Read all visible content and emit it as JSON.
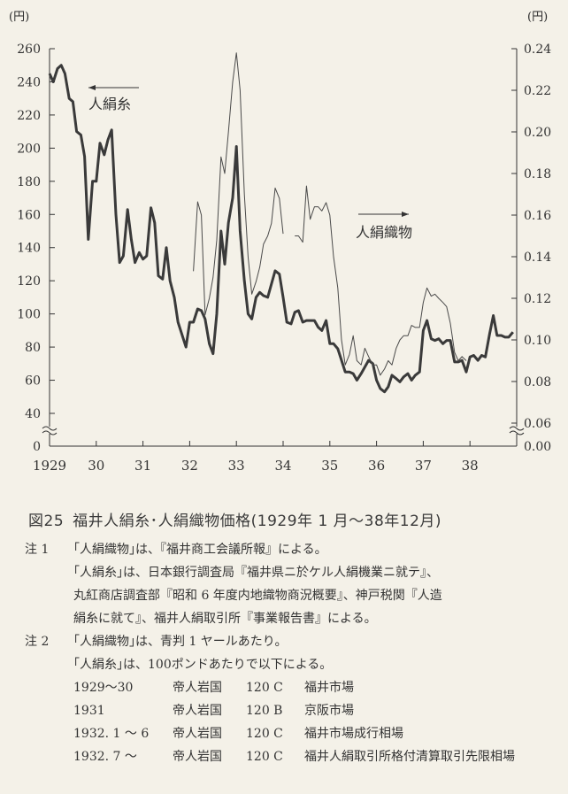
{
  "left_unit": "(円)",
  "right_unit": "(円)",
  "chart_data": {
    "type": "line",
    "x_ticks": [
      "1929",
      "30",
      "31",
      "32",
      "33",
      "34",
      "35",
      "36",
      "37",
      "38"
    ],
    "y_left_ticks": [
      "0",
      "40",
      "60",
      "80",
      "100",
      "120",
      "140",
      "160",
      "180",
      "200",
      "220",
      "240",
      "260"
    ],
    "y_right_ticks": [
      "0.00",
      "0.06",
      "0.08",
      "0.10",
      "0.12",
      "0.14",
      "0.16",
      "0.18",
      "0.20",
      "0.22",
      "0.24"
    ],
    "y_left_range": [
      40,
      260
    ],
    "y_right_range": [
      0.06,
      0.24
    ],
    "axis_break": true,
    "series": [
      {
        "name": "人絹糸",
        "axis": "left",
        "color": "#3a3a3a",
        "points": [
          [
            1929.0,
            245
          ],
          [
            1929.08,
            240
          ],
          [
            1929.17,
            248
          ],
          [
            1929.25,
            250
          ],
          [
            1929.33,
            245
          ],
          [
            1929.42,
            230
          ],
          [
            1929.5,
            228
          ],
          [
            1929.58,
            210
          ],
          [
            1929.67,
            208
          ],
          [
            1929.75,
            195
          ],
          [
            1929.83,
            145
          ],
          [
            1929.92,
            180
          ],
          [
            1930.0,
            180
          ],
          [
            1930.08,
            203
          ],
          [
            1930.17,
            196
          ],
          [
            1930.25,
            205
          ],
          [
            1930.33,
            211
          ],
          [
            1930.42,
            160
          ],
          [
            1930.5,
            131
          ],
          [
            1930.58,
            135
          ],
          [
            1930.67,
            163
          ],
          [
            1930.75,
            145
          ],
          [
            1930.83,
            131
          ],
          [
            1930.92,
            137
          ],
          [
            1931.0,
            133
          ],
          [
            1931.08,
            135
          ],
          [
            1931.17,
            164
          ],
          [
            1931.25,
            155
          ],
          [
            1931.33,
            123
          ],
          [
            1931.42,
            121
          ],
          [
            1931.5,
            140
          ],
          [
            1931.58,
            120
          ],
          [
            1931.67,
            110
          ],
          [
            1931.75,
            95
          ],
          [
            1931.83,
            88
          ],
          [
            1931.92,
            80
          ],
          [
            1932.0,
            95
          ],
          [
            1932.08,
            95
          ],
          [
            1932.17,
            103
          ],
          [
            1932.25,
            102
          ],
          [
            1932.33,
            97
          ],
          [
            1932.42,
            82
          ],
          [
            1932.5,
            76
          ],
          [
            1932.58,
            100
          ],
          [
            1932.67,
            150
          ],
          [
            1932.75,
            130
          ],
          [
            1932.83,
            155
          ],
          [
            1932.92,
            170
          ],
          [
            1933.0,
            201
          ],
          [
            1933.08,
            150
          ],
          [
            1933.17,
            120
          ],
          [
            1933.25,
            100
          ],
          [
            1933.33,
            97
          ],
          [
            1933.42,
            110
          ],
          [
            1933.5,
            113
          ],
          [
            1933.58,
            111
          ],
          [
            1933.67,
            110
          ],
          [
            1933.75,
            118
          ],
          [
            1933.83,
            126
          ],
          [
            1933.92,
            124
          ],
          [
            1934.0,
            110
          ],
          [
            1934.08,
            95
          ],
          [
            1934.17,
            94
          ],
          [
            1934.25,
            101
          ],
          [
            1934.33,
            102
          ],
          [
            1934.42,
            95
          ],
          [
            1934.5,
            96
          ],
          [
            1934.58,
            96
          ],
          [
            1934.67,
            96
          ],
          [
            1934.75,
            92
          ],
          [
            1934.83,
            90
          ],
          [
            1934.92,
            96
          ],
          [
            1935.0,
            82
          ],
          [
            1935.08,
            82
          ],
          [
            1935.17,
            79
          ],
          [
            1935.25,
            72
          ],
          [
            1935.33,
            65
          ],
          [
            1935.42,
            65
          ],
          [
            1935.5,
            64
          ],
          [
            1935.58,
            60
          ],
          [
            1935.67,
            64
          ],
          [
            1935.75,
            68
          ],
          [
            1935.83,
            72
          ],
          [
            1935.92,
            70
          ],
          [
            1936.0,
            60
          ],
          [
            1936.08,
            55
          ],
          [
            1936.17,
            53
          ],
          [
            1936.25,
            56
          ],
          [
            1936.33,
            63
          ],
          [
            1936.42,
            61
          ],
          [
            1936.5,
            59
          ],
          [
            1936.58,
            62
          ],
          [
            1936.67,
            64
          ],
          [
            1936.75,
            60
          ],
          [
            1936.83,
            63
          ],
          [
            1936.92,
            65
          ],
          [
            1937.0,
            90
          ],
          [
            1937.08,
            96
          ],
          [
            1937.17,
            85
          ],
          [
            1937.25,
            84
          ],
          [
            1937.33,
            85
          ],
          [
            1937.42,
            82
          ],
          [
            1937.5,
            84
          ],
          [
            1937.58,
            84
          ],
          [
            1937.67,
            71
          ],
          [
            1937.75,
            71
          ],
          [
            1937.83,
            72
          ],
          [
            1937.92,
            65
          ],
          [
            1938.0,
            74
          ],
          [
            1938.08,
            75
          ],
          [
            1938.17,
            72
          ],
          [
            1938.25,
            75
          ],
          [
            1938.33,
            74
          ],
          [
            1938.42,
            88
          ],
          [
            1938.5,
            99
          ],
          [
            1938.58,
            87
          ],
          [
            1938.67,
            87
          ],
          [
            1938.75,
            86
          ],
          [
            1938.83,
            86
          ],
          [
            1938.92,
            89
          ]
        ]
      },
      {
        "name": "人絹織物",
        "axis": "right",
        "color": "#4a4a4a",
        "segments": [
          [
            [
              1932.08,
              0.133
            ],
            [
              1932.17,
              0.1664
            ],
            [
              1932.25,
              0.16
            ],
            [
              1932.33,
              0.112
            ],
            [
              1932.42,
              0.12
            ],
            [
              1932.5,
              0.13
            ],
            [
              1932.58,
              0.148
            ],
            [
              1932.67,
              0.188
            ],
            [
              1932.75,
              0.18
            ],
            [
              1932.83,
              0.2
            ],
            [
              1932.92,
              0.224
            ],
            [
              1933.0,
              0.238
            ],
            [
              1933.08,
              0.22
            ],
            [
              1933.17,
              0.17
            ],
            [
              1933.25,
              0.14
            ],
            [
              1933.33,
              0.122
            ],
            [
              1933.42,
              0.128
            ],
            [
              1933.5,
              0.135
            ],
            [
              1933.58,
              0.146
            ],
            [
              1933.67,
              0.15
            ],
            [
              1933.75,
              0.156
            ],
            [
              1933.83,
              0.173
            ],
            [
              1933.92,
              0.168
            ],
            [
              1934.0,
              0.151
            ]
          ],
          [
            [
              1934.25,
              0.15
            ],
            [
              1934.33,
              0.15
            ],
            [
              1934.42,
              0.147
            ],
            [
              1934.5,
              0.174
            ],
            [
              1934.58,
              0.158
            ],
            [
              1934.67,
              0.164
            ],
            [
              1934.75,
              0.164
            ],
            [
              1934.83,
              0.162
            ],
            [
              1934.92,
              0.166
            ],
            [
              1935.0,
              0.16
            ],
            [
              1935.08,
              0.14
            ],
            [
              1935.17,
              0.125
            ],
            [
              1935.25,
              0.1
            ],
            [
              1935.33,
              0.088
            ],
            [
              1935.42,
              0.093
            ],
            [
              1935.5,
              0.102
            ],
            [
              1935.58,
              0.09
            ],
            [
              1935.67,
              0.088
            ],
            [
              1935.75,
              0.096
            ],
            [
              1935.83,
              0.092
            ],
            [
              1935.92,
              0.088
            ],
            [
              1936.0,
              0.088
            ],
            [
              1936.08,
              0.083
            ],
            [
              1936.17,
              0.086
            ],
            [
              1936.25,
              0.09
            ],
            [
              1936.33,
              0.088
            ],
            [
              1936.42,
              0.096
            ],
            [
              1936.5,
              0.1
            ],
            [
              1936.58,
              0.102
            ],
            [
              1936.67,
              0.102
            ],
            [
              1936.75,
              0.107
            ],
            [
              1936.83,
              0.106
            ],
            [
              1936.92,
              0.106
            ],
            [
              1937.0,
              0.118
            ],
            [
              1937.08,
              0.125
            ],
            [
              1937.17,
              0.121
            ],
            [
              1937.25,
              0.122
            ],
            [
              1937.33,
              0.12
            ],
            [
              1937.42,
              0.118
            ],
            [
              1937.5,
              0.116
            ],
            [
              1937.58,
              0.108
            ],
            [
              1937.67,
              0.094
            ],
            [
              1937.75,
              0.09
            ],
            [
              1937.83,
              0.092
            ],
            [
              1937.92,
              0.09
            ]
          ]
        ]
      }
    ],
    "annotations": [
      {
        "text": "人絹糸",
        "arrow": "left"
      },
      {
        "text": "人絹織物",
        "arrow": "right"
      }
    ]
  },
  "caption": {
    "number": "図25",
    "title": "福井人絹糸･人絹織物価格(1929年 1 月〜38年12月)"
  },
  "notes": {
    "note1": {
      "label": "注 1",
      "lines": [
        "｢人絹織物｣は、『福井商工会議所報』による。",
        "｢人絹糸｣は、日本銀行調査局『福井県ニ於ケル人絹機業ニ就テ』、",
        "丸紅商店調査部『昭和 6 年度内地織物商況概要』、神戸税関『人造",
        "絹糸に就て』、福井人絹取引所『事業報告書』による。"
      ]
    },
    "note2": {
      "label": "注 2",
      "lines": [
        "｢人絹織物｣は、青判 1 ヤールあたり。",
        "｢人絹糸｣は、100ポンドあたりで以下による。"
      ],
      "rows": [
        {
          "period": "1929〜30",
          "brand": "帝人岩国",
          "grade": "120 C",
          "market": "福井市場"
        },
        {
          "period": "1931",
          "brand": "帝人岩国",
          "grade": "120 B",
          "market": "京阪市場"
        },
        {
          "period": "1932. 1 〜 6",
          "brand": "帝人岩国",
          "grade": "120 C",
          "market": "福井市場成行相場"
        },
        {
          "period": "1932. 7 〜",
          "brand": "帝人岩国",
          "grade": "120 C",
          "market": "福井人絹取引所格付清算取引先限相場"
        }
      ]
    }
  }
}
